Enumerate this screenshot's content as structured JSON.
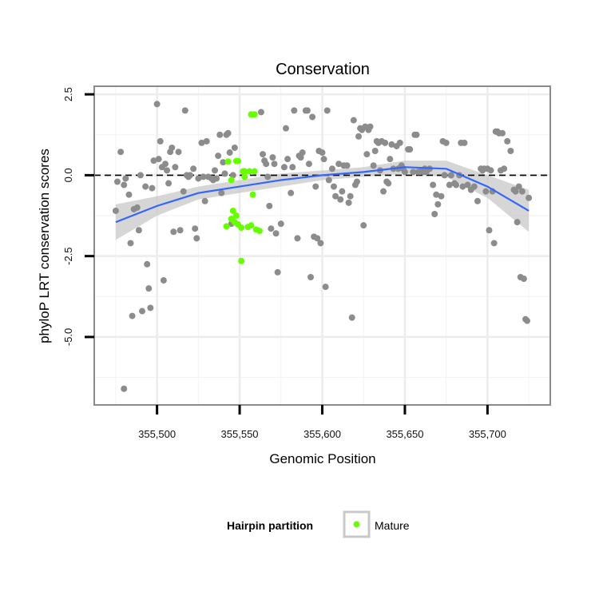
{
  "chart_data": {
    "type": "scatter",
    "title": "Conservation",
    "xlabel": "Genomic Position",
    "ylabel": "phyloP LRT conservation scores",
    "xlim": [
      355462,
      355738
    ],
    "ylim": [
      -7.1,
      2.75
    ],
    "x_ticks": [
      355500,
      355550,
      355600,
      355650,
      355700
    ],
    "x_tick_labels": [
      "355,500",
      "355,550",
      "355,600",
      "355,650",
      "355,700"
    ],
    "y_ticks": [
      2.5,
      0.0,
      -2.5,
      -5.0
    ],
    "y_tick_labels": [
      "2.5",
      "0.0",
      "-2.5",
      "-5.0"
    ],
    "grid": true,
    "reference_line": {
      "y": 0,
      "style": "dashed"
    },
    "legend": {
      "title": "Hairpin partition",
      "placement": "bottom",
      "entries": [
        {
          "label": "Mature",
          "color": "#66ff00"
        }
      ]
    },
    "colors": {
      "other": "#8c8c8c",
      "mature": "#66ff00",
      "smooth": "#3366ff",
      "band": "#c8c8c8"
    },
    "series": [
      {
        "name": "Mature",
        "points": [
          [
            355543,
            0.42
          ],
          [
            355548,
            0.44
          ],
          [
            355549,
            0.44
          ],
          [
            355552,
            0.12
          ],
          [
            355553,
            0.12
          ],
          [
            355556,
            0.12
          ],
          [
            355559,
            0.12
          ],
          [
            355542,
            -1.58
          ],
          [
            355545,
            -1.35
          ],
          [
            355547,
            -1.45
          ],
          [
            355549,
            -1.52
          ],
          [
            355551,
            -1.62
          ],
          [
            355555,
            -1.6
          ],
          [
            355557,
            -1.55
          ],
          [
            355560,
            -1.68
          ],
          [
            355562,
            -1.72
          ],
          [
            355546,
            -1.1
          ],
          [
            355548,
            -1.25
          ],
          [
            355558,
            -0.6
          ],
          [
            355551,
            -2.65
          ],
          [
            355557,
            1.88
          ],
          [
            355559,
            1.88
          ],
          [
            355545,
            -0.15
          ],
          [
            355553,
            -0.05
          ]
        ]
      },
      {
        "points": [
          [
            355475,
            -1.1
          ],
          [
            355476,
            -0.2
          ],
          [
            355478,
            0.72
          ],
          [
            355480,
            -0.3
          ],
          [
            355481,
            -0.1
          ],
          [
            355483,
            -0.6
          ],
          [
            355484,
            -2.1
          ],
          [
            355485,
            -4.35
          ],
          [
            355486,
            -1.05
          ],
          [
            355488,
            -1.0
          ],
          [
            355489,
            -1.7
          ],
          [
            355490,
            0.0
          ],
          [
            355491,
            -4.2
          ],
          [
            355493,
            -0.35
          ],
          [
            355494,
            -2.75
          ],
          [
            355495,
            -3.5
          ],
          [
            355496,
            -4.1
          ],
          [
            355497,
            -0.4
          ],
          [
            355498,
            0.45
          ],
          [
            355500,
            2.2
          ],
          [
            355501,
            0.5
          ],
          [
            355502,
            1.05
          ],
          [
            355503,
            0.25
          ],
          [
            355504,
            -3.25
          ],
          [
            355505,
            0.35
          ],
          [
            355506,
            0.15
          ],
          [
            355507,
            -0.25
          ],
          [
            355508,
            0.72
          ],
          [
            355509,
            0.85
          ],
          [
            355510,
            -1.75
          ],
          [
            355511,
            0.25
          ],
          [
            355513,
            0.72
          ],
          [
            355514,
            -1.7
          ],
          [
            355516,
            -0.5
          ],
          [
            355517,
            2.0
          ],
          [
            355518,
            0.0
          ],
          [
            355519,
            -0.05
          ],
          [
            355520,
            0.0
          ],
          [
            355522,
            0.2
          ],
          [
            355523,
            -1.65
          ],
          [
            355524,
            -1.95
          ],
          [
            355525,
            -0.1
          ],
          [
            355527,
            1.0
          ],
          [
            355528,
            -0.05
          ],
          [
            355529,
            -0.8
          ],
          [
            355530,
            1.05
          ],
          [
            355531,
            -0.05
          ],
          [
            355533,
            -0.1
          ],
          [
            355534,
            -0.15
          ],
          [
            355535,
            0.15
          ],
          [
            355536,
            -0.1
          ],
          [
            355537,
            0.6
          ],
          [
            355538,
            1.25
          ],
          [
            355539,
            -0.55
          ],
          [
            355540,
            0.4
          ],
          [
            355541,
            0.05
          ],
          [
            355542,
            1.25
          ],
          [
            355543,
            1.3
          ],
          [
            355544,
            0.7
          ],
          [
            355545,
            -1.5
          ],
          [
            355546,
            0.0
          ],
          [
            355547,
            0.85
          ],
          [
            355563,
            1.95
          ],
          [
            355564,
            0.65
          ],
          [
            355565,
            0.45
          ],
          [
            355566,
            0.35
          ],
          [
            355567,
            -0.05
          ],
          [
            355568,
            -0.95
          ],
          [
            355569,
            -1.65
          ],
          [
            355570,
            0.55
          ],
          [
            355571,
            0.35
          ],
          [
            355572,
            -1.8
          ],
          [
            355573,
            -3.0
          ],
          [
            355575,
            -1.5
          ],
          [
            355577,
            0.25
          ],
          [
            355578,
            1.45
          ],
          [
            355579,
            0.5
          ],
          [
            355581,
            -0.55
          ],
          [
            355582,
            0.25
          ],
          [
            355583,
            2.0
          ],
          [
            355585,
            -1.95
          ],
          [
            355586,
            0.6
          ],
          [
            355587,
            0.55
          ],
          [
            355588,
            0.7
          ],
          [
            355590,
            2.0
          ],
          [
            355591,
            2.0
          ],
          [
            355592,
            0.35
          ],
          [
            355593,
            -3.15
          ],
          [
            355594,
            1.8
          ],
          [
            355595,
            -1.9
          ],
          [
            355596,
            -0.35
          ],
          [
            355597,
            -1.95
          ],
          [
            355598,
            0.75
          ],
          [
            355599,
            -2.1
          ],
          [
            355600,
            0.7
          ],
          [
            355601,
            0.5
          ],
          [
            355602,
            -3.45
          ],
          [
            355603,
            2.0
          ],
          [
            355604,
            -0.15
          ],
          [
            355606,
            0.2
          ],
          [
            355607,
            -0.35
          ],
          [
            355608,
            -0.65
          ],
          [
            355610,
            0.35
          ],
          [
            355611,
            -0.75
          ],
          [
            355612,
            -0.5
          ],
          [
            355613,
            0.3
          ],
          [
            355615,
            0.3
          ],
          [
            355616,
            -0.85
          ],
          [
            355617,
            -0.65
          ],
          [
            355618,
            -4.4
          ],
          [
            355619,
            1.7
          ],
          [
            355620,
            -0.3
          ],
          [
            355621,
            -0.2
          ],
          [
            355622,
            1.2
          ],
          [
            355623,
            1.45
          ],
          [
            355624,
            1.4
          ],
          [
            355625,
            -1.55
          ],
          [
            355626,
            1.5
          ],
          [
            355627,
            0.65
          ],
          [
            355628,
            1.4
          ],
          [
            355629,
            1.5
          ],
          [
            355631,
            0.3
          ],
          [
            355632,
            0.75
          ],
          [
            355633,
            1.05
          ],
          [
            355634,
            1.0
          ],
          [
            355635,
            0.15
          ],
          [
            355636,
            1.05
          ],
          [
            355637,
            -0.5
          ],
          [
            355638,
            1.0
          ],
          [
            355639,
            -0.2
          ],
          [
            355640,
            -0.25
          ],
          [
            355641,
            0.5
          ],
          [
            355642,
            0.95
          ],
          [
            355643,
            0.2
          ],
          [
            355645,
            0.9
          ],
          [
            355646,
            0.2
          ],
          [
            355647,
            1.0
          ],
          [
            355648,
            0.3
          ],
          [
            355649,
            0.2
          ],
          [
            355650,
            0.1
          ],
          [
            355652,
            0.8
          ],
          [
            355653,
            0.8
          ],
          [
            355655,
            0.1
          ],
          [
            355656,
            1.25
          ],
          [
            355657,
            1.25
          ],
          [
            355658,
            0.1
          ],
          [
            355659,
            0.1
          ],
          [
            355660,
            0.15
          ],
          [
            355661,
            0.1
          ],
          [
            355662,
            0.2
          ],
          [
            355663,
            0.1
          ],
          [
            355665,
            0.2
          ],
          [
            355667,
            -0.3
          ],
          [
            355668,
            -1.2
          ],
          [
            355669,
            -0.6
          ],
          [
            355670,
            -0.9
          ],
          [
            355672,
            -0.65
          ],
          [
            355673,
            1.05
          ],
          [
            355674,
            0.0
          ],
          [
            355675,
            1.0
          ],
          [
            355677,
            -0.3
          ],
          [
            355678,
            0.0
          ],
          [
            355680,
            -0.25
          ],
          [
            355681,
            -0.3
          ],
          [
            355683,
            0.0
          ],
          [
            355684,
            1.0
          ],
          [
            355685,
            -0.35
          ],
          [
            355686,
            1.0
          ],
          [
            355688,
            -0.3
          ],
          [
            355690,
            -0.45
          ],
          [
            355692,
            -0.35
          ],
          [
            355694,
            -0.8
          ],
          [
            355696,
            0.2
          ],
          [
            355697,
            0.15
          ],
          [
            355698,
            0.2
          ],
          [
            355699,
            -0.5
          ],
          [
            355700,
            0.2
          ],
          [
            355701,
            -1.7
          ],
          [
            355702,
            0.15
          ],
          [
            355703,
            -0.5
          ],
          [
            355704,
            -2.1
          ],
          [
            355705,
            1.35
          ],
          [
            355706,
            1.35
          ],
          [
            355707,
            1.3
          ],
          [
            355708,
            0.15
          ],
          [
            355709,
            1.3
          ],
          [
            355710,
            0.2
          ],
          [
            355712,
            1.05
          ],
          [
            355714,
            0.75
          ],
          [
            355716,
            -0.45
          ],
          [
            355717,
            -0.5
          ],
          [
            355718,
            -1.45
          ],
          [
            355719,
            -0.35
          ],
          [
            355720,
            -3.15
          ],
          [
            355721,
            -0.5
          ],
          [
            355722,
            -3.2
          ],
          [
            355723,
            -4.45
          ],
          [
            355724,
            -4.5
          ],
          [
            355725,
            -0.7
          ],
          [
            355480,
            -6.6
          ]
        ]
      }
    ],
    "smooth_line": {
      "x": [
        355475,
        355500,
        355525,
        355550,
        355575,
        355600,
        355625,
        355650,
        355675,
        355700,
        355725
      ],
      "y": [
        -1.45,
        -0.95,
        -0.55,
        -0.35,
        -0.15,
        0.0,
        0.1,
        0.25,
        0.2,
        -0.35,
        -1.1
      ],
      "band_lower": [
        -2.0,
        -1.25,
        -0.75,
        -0.55,
        -0.35,
        -0.15,
        -0.05,
        0.05,
        -0.05,
        -0.7,
        -1.75
      ],
      "band_upper": [
        -0.9,
        -0.65,
        -0.35,
        -0.15,
        0.05,
        0.15,
        0.25,
        0.45,
        0.45,
        0.0,
        -0.45
      ]
    }
  }
}
